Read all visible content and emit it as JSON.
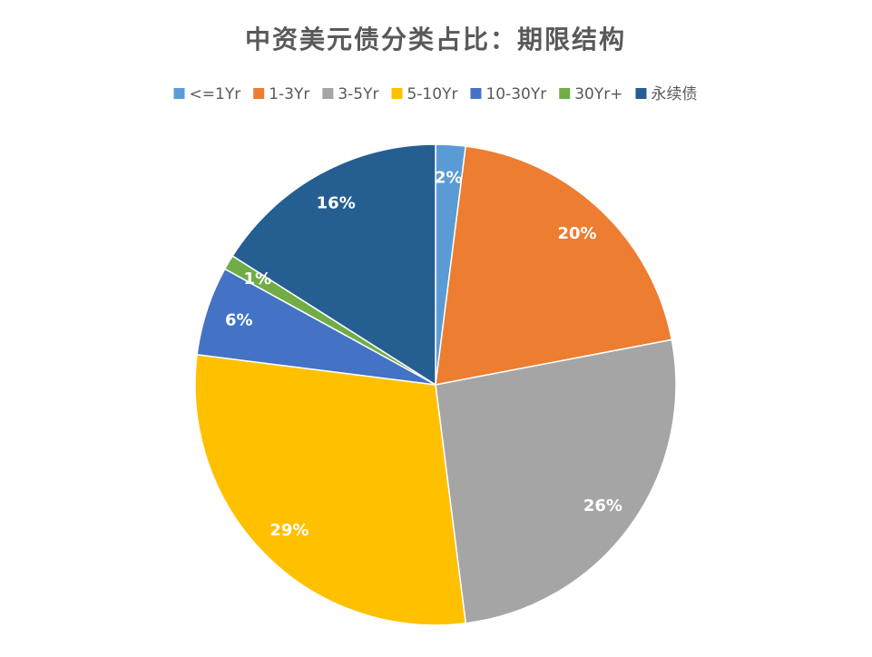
{
  "chart_data": {
    "type": "pie",
    "title": "中资美元债分类占比：期限结构",
    "categories": [
      "<=1Yr",
      "1-3Yr",
      "3-5Yr",
      "5-10Yr",
      "10-30Yr",
      "30Yr+",
      "永续债"
    ],
    "values": [
      2,
      20,
      26,
      29,
      6,
      1,
      16
    ],
    "value_labels": [
      "2%",
      "20%",
      "26%",
      "29%",
      "6%",
      "1%",
      "16%"
    ],
    "colors": [
      "#5b9bd5",
      "#ed7d31",
      "#a5a5a5",
      "#ffc000",
      "#4472c4",
      "#70ad47",
      "#255e91"
    ]
  }
}
